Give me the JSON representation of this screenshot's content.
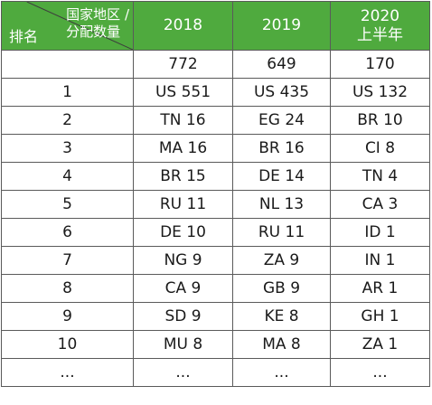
{
  "header": {
    "rank_label": "排名",
    "country_label_line1": "国家地区 /",
    "country_label_line2": "分配数量",
    "col_2018": "2018",
    "col_2019": "2019",
    "col_2020_line1": "2020",
    "col_2020_line2": "上半年"
  },
  "totals": {
    "rank": "",
    "y2018": "772",
    "y2019": "649",
    "y2020": "170"
  },
  "rows": [
    {
      "rank": "1",
      "y2018": "US 551",
      "y2019": "US 435",
      "y2020": "US 132"
    },
    {
      "rank": "2",
      "y2018": "TN 16",
      "y2019": "EG 24",
      "y2020": "BR 10"
    },
    {
      "rank": "3",
      "y2018": "MA 16",
      "y2019": "BR 16",
      "y2020": "CI 8"
    },
    {
      "rank": "4",
      "y2018": "BR 15",
      "y2019": "DE 14",
      "y2020": "TN 4"
    },
    {
      "rank": "5",
      "y2018": "RU 11",
      "y2019": "NL 13",
      "y2020": "CA 3"
    },
    {
      "rank": "6",
      "y2018": "DE 10",
      "y2019": "RU 11",
      "y2020": "ID 1"
    },
    {
      "rank": "7",
      "y2018": "NG 9",
      "y2019": "ZA 9",
      "y2020": "IN 1"
    },
    {
      "rank": "8",
      "y2018": "CA 9",
      "y2019": "GB 9",
      "y2020": "AR 1"
    },
    {
      "rank": "9",
      "y2018": "SD 9",
      "y2019": "KE 8",
      "y2020": "GH 1"
    },
    {
      "rank": "10",
      "y2018": "MU 8",
      "y2019": "MA 8",
      "y2020": "ZA 1"
    },
    {
      "rank": "...",
      "y2018": "...",
      "y2019": "...",
      "y2020": "..."
    }
  ],
  "colors": {
    "header_bg": "#4faa3e",
    "header_text": "#ffffff",
    "border": "#5a5a5a"
  }
}
